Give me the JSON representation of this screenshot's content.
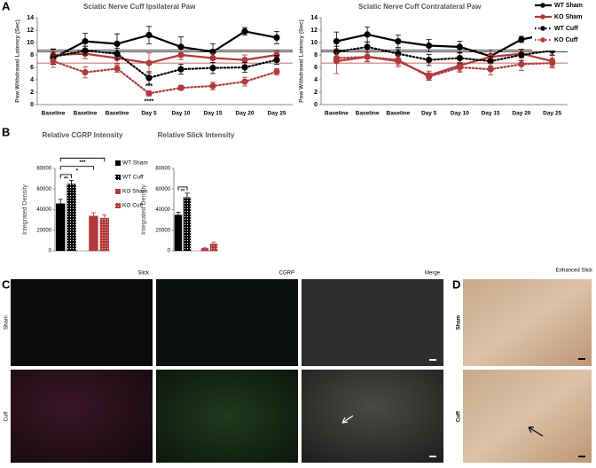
{
  "panel_labels": [
    "A",
    "B",
    "C",
    "D"
  ],
  "chart_data": [
    {
      "type": "line",
      "title": "Sciatic Nerve Cuff Ipsilateral Paw",
      "ylabel": "Paw Withdrawal Latency (Sec)",
      "categories": [
        "Baseline",
        "Baseline",
        "Baseline",
        "Day 5",
        "Day 10",
        "Day 15",
        "Day 20",
        "Day 25"
      ],
      "ylim": [
        0,
        14
      ],
      "yticks": [
        0,
        2,
        4,
        6,
        8,
        10,
        12,
        14
      ],
      "legend": false,
      "reference_lines": [
        {
          "value": 8.8,
          "color": "#000000"
        },
        {
          "value": 8.5,
          "color": "#000000"
        },
        {
          "value": 6.7,
          "color": "#b03a3a"
        }
      ],
      "annotations": [
        {
          "text": "***",
          "x": "Day 5",
          "y": 2.9
        },
        {
          "text": "****",
          "x": "Day 5",
          "y": 0.5
        }
      ],
      "series": [
        {
          "name": "WT Sham",
          "color": "#000000",
          "line_style": "solid",
          "values": [
            7.5,
            10.2,
            9.8,
            11.2,
            9.3,
            8.5,
            11.8,
            10.8
          ],
          "errors": [
            1.0,
            1.3,
            1.6,
            1.4,
            1.6,
            1.3,
            0.6,
            1.0
          ]
        },
        {
          "name": "KO Sham",
          "color": "#b03a3a",
          "line_style": "solid",
          "values": [
            8.0,
            8.2,
            7.5,
            6.7,
            8.0,
            7.5,
            7.2,
            8.0
          ],
          "errors": [
            1.0,
            0.8,
            0.9,
            1.6,
            0.8,
            0.7,
            0.8,
            0.6
          ]
        },
        {
          "name": "WT Cuff",
          "color": "#000000",
          "line_style": "dotted",
          "values": [
            7.7,
            8.7,
            8.2,
            4.3,
            5.7,
            5.9,
            6.0,
            7.2
          ],
          "errors": [
            1.2,
            0.7,
            0.9,
            1.0,
            0.8,
            0.9,
            0.8,
            0.7
          ]
        },
        {
          "name": "KO Cuff",
          "color": "#b03a3a",
          "line_style": "dotted",
          "values": [
            7.0,
            5.2,
            5.8,
            1.8,
            2.7,
            3.0,
            3.7,
            5.3
          ],
          "errors": [
            1.0,
            0.9,
            0.6,
            0.4,
            0.4,
            0.6,
            0.7,
            0.5
          ]
        }
      ]
    },
    {
      "type": "line",
      "title": "Sciatic Nerve Cuff Contralateral Paw",
      "ylabel": "Paw Withdrawal Latency (Sec)",
      "categories": [
        "Baseline",
        "Baseline",
        "Baseline",
        "Day 5",
        "Day 10",
        "Day 15",
        "Day 20",
        "Day 25"
      ],
      "ylim": [
        0,
        14
      ],
      "yticks": [
        0,
        2,
        4,
        6,
        8,
        10,
        12,
        14
      ],
      "legend": true,
      "reference_lines": [
        {
          "value": 8.8,
          "color": "#000000"
        },
        {
          "value": 8.5,
          "color": "#000000"
        },
        {
          "value": 6.7,
          "color": "#b03a3a"
        }
      ],
      "annotations": [],
      "series": [
        {
          "name": "WT Sham",
          "color": "#000000",
          "line_style": "solid",
          "values": [
            10.2,
            11.3,
            10.2,
            9.5,
            9.3,
            7.8,
            10.5,
            11.5
          ],
          "errors": [
            1.5,
            1.2,
            1.0,
            1.0,
            0.9,
            1.0,
            0.5,
            0.8
          ]
        },
        {
          "name": "KO Sham",
          "color": "#b03a3a",
          "line_style": "solid",
          "values": [
            7.0,
            7.7,
            7.0,
            4.7,
            6.3,
            7.7,
            8.2,
            7.0
          ],
          "errors": [
            2.0,
            0.8,
            0.9,
            0.7,
            0.9,
            0.8,
            0.6,
            0.9
          ]
        },
        {
          "name": "WT Cuff",
          "color": "#000000",
          "line_style": "dotted",
          "values": [
            8.5,
            9.3,
            8.2,
            7.2,
            7.5,
            7.0,
            8.0,
            8.7
          ],
          "errors": [
            0.9,
            0.8,
            0.8,
            0.9,
            0.8,
            0.8,
            0.9,
            0.7
          ]
        },
        {
          "name": "KO Cuff",
          "color": "#b03a3a",
          "line_style": "dotted",
          "values": [
            7.5,
            7.7,
            7.2,
            4.5,
            6.0,
            5.7,
            6.5,
            6.7
          ],
          "errors": [
            0.8,
            0.7,
            0.8,
            0.6,
            0.8,
            0.9,
            1.0,
            0.8
          ]
        }
      ]
    },
    {
      "type": "bar",
      "title": "Relative CGRP Intensity",
      "ylabel": "Integrated Density",
      "ylim": [
        0,
        80000
      ],
      "yticks": [
        0,
        20000,
        40000,
        60000,
        80000
      ],
      "legend": true,
      "significance": [
        {
          "text": "**",
          "from": 0,
          "to": 1,
          "y": 74000
        },
        {
          "text": "*",
          "from": 0,
          "to": 2,
          "y": 82000
        },
        {
          "text": "***",
          "from": 0,
          "to": 3,
          "y": 90000
        }
      ],
      "series": [
        {
          "name": "WT Sham",
          "color": "#000000",
          "pattern": "solid",
          "values": [
            46000
          ],
          "errors": [
            4000
          ]
        },
        {
          "name": "WT Cuff",
          "color": "#000000",
          "pattern": "dots",
          "values": [
            65000
          ],
          "errors": [
            3500
          ]
        },
        {
          "name": "KO Sham",
          "color": "#b03a3a",
          "pattern": "solid",
          "values": [
            34000
          ],
          "errors": [
            3000
          ]
        },
        {
          "name": "KO Cuff",
          "color": "#b03a3a",
          "pattern": "dots",
          "values": [
            32000
          ],
          "errors": [
            3000
          ]
        }
      ]
    },
    {
      "type": "bar",
      "title": "Relative Slick Intensity",
      "ylabel": "Integrated Density",
      "ylim": [
        0,
        80000
      ],
      "yticks": [
        0,
        20000,
        40000,
        60000,
        80000
      ],
      "legend": false,
      "significance": [
        {
          "text": "**",
          "from": 0,
          "to": 1,
          "y": 62000
        }
      ],
      "series": [
        {
          "name": "WT Sham",
          "color": "#000000",
          "pattern": "solid",
          "values": [
            35000
          ],
          "errors": [
            2500
          ]
        },
        {
          "name": "WT Cuff",
          "color": "#000000",
          "pattern": "dots",
          "values": [
            52000
          ],
          "errors": [
            4000
          ]
        },
        {
          "name": "KO Sham",
          "color": "#b03a3a",
          "pattern": "solid",
          "values": [
            2500
          ],
          "errors": [
            500
          ]
        },
        {
          "name": "KO Cuff",
          "color": "#b03a3a",
          "pattern": "dots",
          "values": [
            7000
          ],
          "errors": [
            1500
          ]
        }
      ]
    }
  ],
  "micrographs": {
    "panel_c": {
      "columns": [
        "Slick",
        "CGRP",
        "Merge"
      ],
      "rows": [
        "Sham",
        "Cuff"
      ]
    },
    "panel_d": {
      "title": "Enhanced Slick",
      "rows": [
        "Sham",
        "Cuff"
      ]
    }
  }
}
